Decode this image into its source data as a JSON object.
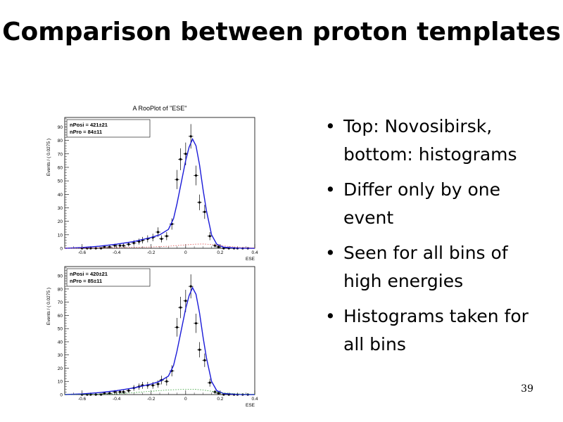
{
  "slide": {
    "title": "Comparison between proton templates",
    "page_number": "39",
    "bullets": [
      "Top: Novosibirsk, bottom: histograms",
      "Differ only by one event",
      "Seen for all bins of high energies",
      "Histograms taken for all bins"
    ],
    "bullet_glyph": "•"
  },
  "chart_data": [
    {
      "type": "scatter",
      "title": "A RooPlot of \"ESE\"",
      "xlabel": "ESE",
      "ylabel": "Events / ( 0.0275 )",
      "xlim": [
        -0.7,
        0.4
      ],
      "ylim": [
        0,
        97
      ],
      "xticks": [
        -0.6,
        -0.4,
        -0.2,
        0,
        0.2,
        0.4
      ],
      "yticks": [
        0,
        10,
        20,
        30,
        40,
        50,
        60,
        70,
        80,
        90
      ],
      "grid": false,
      "stats_box": [
        "nPosi = 421±21",
        "nPro = 84±11"
      ],
      "series": [
        {
          "type": "points",
          "color": "#000000",
          "x": [
            -0.6,
            -0.57,
            -0.55,
            -0.52,
            -0.49,
            -0.47,
            -0.44,
            -0.41,
            -0.38,
            -0.36,
            -0.33,
            -0.3,
            -0.27,
            -0.25,
            -0.22,
            -0.19,
            -0.16,
            -0.14,
            -0.11,
            -0.08,
            -0.05,
            -0.03,
            0.0,
            0.03,
            0.06,
            0.08,
            0.11,
            0.14,
            0.17,
            0.19,
            0.22,
            0.25,
            0.28,
            0.3,
            0.33,
            0.36
          ],
          "y": [
            0,
            0,
            0,
            0,
            0,
            1,
            1,
            2,
            2,
            2,
            3,
            4,
            5,
            6,
            7,
            8,
            12,
            7,
            9,
            18,
            51,
            66,
            70,
            83,
            54,
            34,
            27,
            9,
            2,
            1,
            0,
            0,
            0,
            0,
            0,
            0
          ],
          "yerr": [
            0,
            0,
            0,
            0,
            0,
            1,
            1,
            1.4,
            1.4,
            1.4,
            1.7,
            2,
            2.2,
            2.4,
            2.6,
            2.8,
            3.5,
            2.6,
            3,
            4.2,
            7.1,
            8.1,
            8.4,
            9.1,
            7.3,
            5.8,
            5.2,
            3,
            1.4,
            1,
            0,
            0,
            0,
            0,
            0,
            0
          ],
          "x_halfwidth": 0.01375
        },
        {
          "type": "line",
          "color": "#1a1ad8",
          "x": [
            -0.7,
            -0.6,
            -0.5,
            -0.4,
            -0.3,
            -0.25,
            -0.2,
            -0.15,
            -0.1,
            -0.07,
            -0.05,
            -0.03,
            0.0,
            0.02,
            0.04,
            0.06,
            0.08,
            0.1,
            0.12,
            0.15,
            0.18,
            0.22,
            0.3,
            0.4
          ],
          "y": [
            0,
            0.5,
            1.5,
            3,
            5,
            6.5,
            8,
            10,
            14,
            22,
            33,
            46,
            65,
            75,
            81,
            76,
            62,
            44,
            28,
            10,
            3,
            0.8,
            0.1,
            0
          ]
        },
        {
          "type": "line",
          "style": "dotted",
          "color": "#e05050",
          "x": [
            -0.7,
            -0.4,
            -0.2,
            -0.1,
            0.0,
            0.05,
            0.1,
            0.15,
            0.2,
            0.3,
            0.4
          ],
          "y": [
            0,
            0.5,
            1,
            1.5,
            2.5,
            3,
            3.2,
            2.8,
            2,
            0.8,
            0.2
          ]
        }
      ]
    },
    {
      "type": "scatter",
      "title": "",
      "xlabel": "ESE",
      "ylabel": "Events / ( 0.0275 )",
      "xlim": [
        -0.7,
        0.4
      ],
      "ylim": [
        0,
        97
      ],
      "xticks": [
        -0.6,
        -0.4,
        -0.2,
        0,
        0.2,
        0.4
      ],
      "yticks": [
        0,
        10,
        20,
        30,
        40,
        50,
        60,
        70,
        80,
        90
      ],
      "grid": false,
      "stats_box": [
        "nPosi = 420±21",
        "nPro = 85±11"
      ],
      "series": [
        {
          "type": "points",
          "color": "#000000",
          "x": [
            -0.6,
            -0.57,
            -0.55,
            -0.52,
            -0.49,
            -0.47,
            -0.44,
            -0.41,
            -0.38,
            -0.36,
            -0.33,
            -0.3,
            -0.27,
            -0.25,
            -0.22,
            -0.19,
            -0.16,
            -0.14,
            -0.11,
            -0.08,
            -0.05,
            -0.03,
            0.0,
            0.03,
            0.06,
            0.08,
            0.11,
            0.14,
            0.17,
            0.19,
            0.22,
            0.25,
            0.28,
            0.3,
            0.33,
            0.36
          ],
          "y": [
            0,
            0,
            0,
            0,
            0,
            1,
            1,
            2,
            2,
            2,
            3,
            5,
            6,
            7,
            7,
            7,
            8,
            11,
            10,
            18,
            51,
            66,
            71,
            82,
            54,
            34,
            26,
            9,
            2,
            1,
            0,
            0,
            0,
            0,
            0,
            0
          ],
          "yerr": [
            0,
            0,
            0,
            0,
            0,
            1,
            1,
            1.4,
            1.4,
            1.4,
            1.7,
            2.2,
            2.4,
            2.6,
            2.6,
            2.6,
            2.8,
            3.3,
            3.2,
            4.2,
            7.1,
            8.1,
            8.4,
            9.1,
            7.3,
            5.8,
            5.1,
            3,
            1.4,
            1,
            0,
            0,
            0,
            0,
            0,
            0
          ],
          "x_halfwidth": 0.01375
        },
        {
          "type": "line",
          "color": "#1a1ad8",
          "x": [
            -0.7,
            -0.6,
            -0.5,
            -0.4,
            -0.3,
            -0.25,
            -0.2,
            -0.15,
            -0.1,
            -0.07,
            -0.05,
            -0.03,
            0.0,
            0.02,
            0.04,
            0.06,
            0.08,
            0.1,
            0.12,
            0.15,
            0.18,
            0.22,
            0.3,
            0.4
          ],
          "y": [
            0,
            0.5,
            1.5,
            3,
            5,
            6.5,
            8,
            10,
            14,
            22,
            33,
            46,
            65,
            75,
            81,
            76,
            62,
            44,
            28,
            10,
            3,
            0.8,
            0.1,
            0
          ]
        },
        {
          "type": "line",
          "style": "dotted",
          "color": "#2a9a2a",
          "x": [
            -0.7,
            -0.4,
            -0.3,
            -0.2,
            -0.1,
            0.0,
            0.05,
            0.1,
            0.15,
            0.2,
            0.3,
            0.4
          ],
          "y": [
            0,
            0.5,
            1.5,
            2.5,
            3.5,
            4,
            4,
            3.5,
            2.5,
            1.5,
            0.5,
            0.1
          ]
        }
      ]
    }
  ]
}
